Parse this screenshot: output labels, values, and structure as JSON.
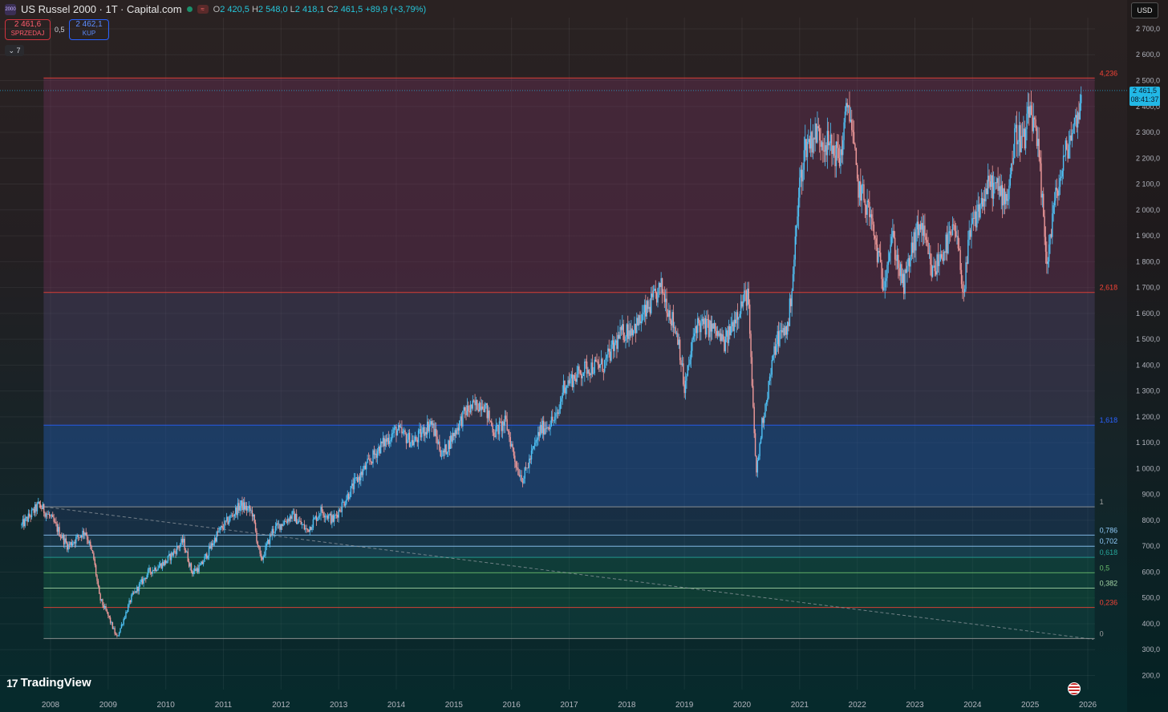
{
  "header": {
    "title": "US Russel 2000 · 1T · Capital.com",
    "ohlc": {
      "o_label": "O",
      "o": "2 420,5",
      "h_label": "H",
      "h": "2 548,0",
      "l_label": "L",
      "l": "2 418,1",
      "c_label": "C",
      "c": "2 461,5",
      "change": "+89,9 (+3,79%)"
    },
    "logo_text": "2000",
    "status_text": "≈"
  },
  "trade": {
    "sell_price": "2 461,6",
    "sell_label": "SPRZEDAJ",
    "spread": "0,5",
    "buy_price": "2 462,1",
    "buy_label": "KUP"
  },
  "indicators_toggle": "7",
  "currency": "USD",
  "last_price": {
    "value": "2 461,5",
    "countdown": "08:41:37"
  },
  "brand": "TradingView",
  "colors": {
    "up": "#26a69a",
    "up_light": "#4fc3f7",
    "down": "#ef9a9a",
    "fib_red": "#d0333f",
    "fib_blue": "#2962ff",
    "accent": "#22b8e6"
  },
  "chart_data": {
    "type": "candlestick",
    "y_range": [
      200,
      2800
    ],
    "x_range": [
      2007.5,
      2026.25
    ],
    "y_ticks": [
      "200,0",
      "300,0",
      "400,0",
      "500,0",
      "600,0",
      "700,0",
      "800,0",
      "900,0",
      "1 000,0",
      "1 100,0",
      "1 200,0",
      "1 300,0",
      "1 400,0",
      "1 500,0",
      "1 600,0",
      "1 700,0",
      "1 800,0",
      "1 900,0",
      "2 000,0",
      "2 100,0",
      "2 200,0",
      "2 300,0",
      "2 400,0",
      "2 500,0",
      "2 600,0",
      "2 700,0"
    ],
    "x_ticks": [
      "2008",
      "2009",
      "2010",
      "2011",
      "2012",
      "2013",
      "2014",
      "2015",
      "2016",
      "2017",
      "2018",
      "2019",
      "2020",
      "2021",
      "2022",
      "2023",
      "2024",
      "2025",
      "2026"
    ],
    "fib_levels": [
      {
        "label": "0",
        "price": 343,
        "color": "#9e9e9e"
      },
      {
        "label": "0,236",
        "price": 463,
        "color": "#f44336"
      },
      {
        "label": "0,382",
        "price": 538,
        "color": "#a5d6a7"
      },
      {
        "label": "0,5",
        "price": 597,
        "color": "#66bb6a"
      },
      {
        "label": "0,618",
        "price": 657,
        "color": "#26a69a"
      },
      {
        "label": "0,702",
        "price": 700,
        "color": "#90caf9"
      },
      {
        "label": "0,786",
        "price": 743,
        "color": "#90caf9"
      },
      {
        "label": "1",
        "price": 852,
        "color": "#9e9e9e"
      },
      {
        "label": "1,618",
        "price": 1168,
        "color": "#2962ff"
      },
      {
        "label": "2,618",
        "price": 1681,
        "color": "#f44336"
      },
      {
        "label": "4,236",
        "price": 2510,
        "color": "#f44336"
      }
    ],
    "trendline": {
      "from": [
        2007.8,
        855
      ],
      "to": [
        2026.1,
        340
      ]
    },
    "last_price": 2461.5,
    "path": [
      [
        2007.5,
        780
      ],
      [
        2007.8,
        860
      ],
      [
        2008.0,
        810
      ],
      [
        2008.3,
        700
      ],
      [
        2008.6,
        760
      ],
      [
        2008.75,
        650
      ],
      [
        2008.85,
        500
      ],
      [
        2009.0,
        430
      ],
      [
        2009.15,
        345
      ],
      [
        2009.4,
        500
      ],
      [
        2009.7,
        600
      ],
      [
        2010.0,
        640
      ],
      [
        2010.3,
        720
      ],
      [
        2010.45,
        600
      ],
      [
        2010.6,
        620
      ],
      [
        2010.9,
        750
      ],
      [
        2011.3,
        860
      ],
      [
        2011.5,
        830
      ],
      [
        2011.65,
        640
      ],
      [
        2011.85,
        760
      ],
      [
        2012.2,
        820
      ],
      [
        2012.45,
        760
      ],
      [
        2012.7,
        840
      ],
      [
        2012.9,
        800
      ],
      [
        2013.3,
        950
      ],
      [
        2013.7,
        1080
      ],
      [
        2014.0,
        1150
      ],
      [
        2014.3,
        1100
      ],
      [
        2014.6,
        1180
      ],
      [
        2014.8,
        1050
      ],
      [
        2015.2,
        1220
      ],
      [
        2015.5,
        1260
      ],
      [
        2015.7,
        1140
      ],
      [
        2015.9,
        1180
      ],
      [
        2016.1,
        1000
      ],
      [
        2016.2,
        960
      ],
      [
        2016.5,
        1150
      ],
      [
        2016.8,
        1200
      ],
      [
        2016.9,
        1320
      ],
      [
        2017.3,
        1390
      ],
      [
        2017.6,
        1400
      ],
      [
        2017.9,
        1520
      ],
      [
        2018.2,
        1560
      ],
      [
        2018.6,
        1700
      ],
      [
        2018.9,
        1500
      ],
      [
        2019.0,
        1300
      ],
      [
        2019.2,
        1560
      ],
      [
        2019.5,
        1540
      ],
      [
        2019.7,
        1480
      ],
      [
        2019.9,
        1600
      ],
      [
        2020.1,
        1680
      ],
      [
        2020.2,
        1180
      ],
      [
        2020.25,
        980
      ],
      [
        2020.35,
        1180
      ],
      [
        2020.6,
        1500
      ],
      [
        2020.8,
        1550
      ],
      [
        2020.9,
        1800
      ],
      [
        2021.0,
        2100
      ],
      [
        2021.1,
        2250
      ],
      [
        2021.3,
        2300
      ],
      [
        2021.5,
        2250
      ],
      [
        2021.7,
        2200
      ],
      [
        2021.85,
        2430
      ],
      [
        2022.0,
        2100
      ],
      [
        2022.2,
        2000
      ],
      [
        2022.45,
        1720
      ],
      [
        2022.6,
        1900
      ],
      [
        2022.8,
        1700
      ],
      [
        2022.95,
        1850
      ],
      [
        2023.1,
        1950
      ],
      [
        2023.3,
        1750
      ],
      [
        2023.5,
        1850
      ],
      [
        2023.7,
        1920
      ],
      [
        2023.85,
        1680
      ],
      [
        2023.95,
        1900
      ],
      [
        2024.1,
        2000
      ],
      [
        2024.3,
        2100
      ],
      [
        2024.6,
        2050
      ],
      [
        2024.75,
        2300
      ],
      [
        2024.9,
        2260
      ],
      [
        2025.0,
        2400
      ],
      [
        2025.15,
        2200
      ],
      [
        2025.25,
        1900
      ],
      [
        2025.3,
        1800
      ],
      [
        2025.4,
        2000
      ],
      [
        2025.55,
        2150
      ],
      [
        2025.65,
        2250
      ],
      [
        2025.8,
        2350
      ],
      [
        2025.9,
        2461
      ]
    ]
  }
}
